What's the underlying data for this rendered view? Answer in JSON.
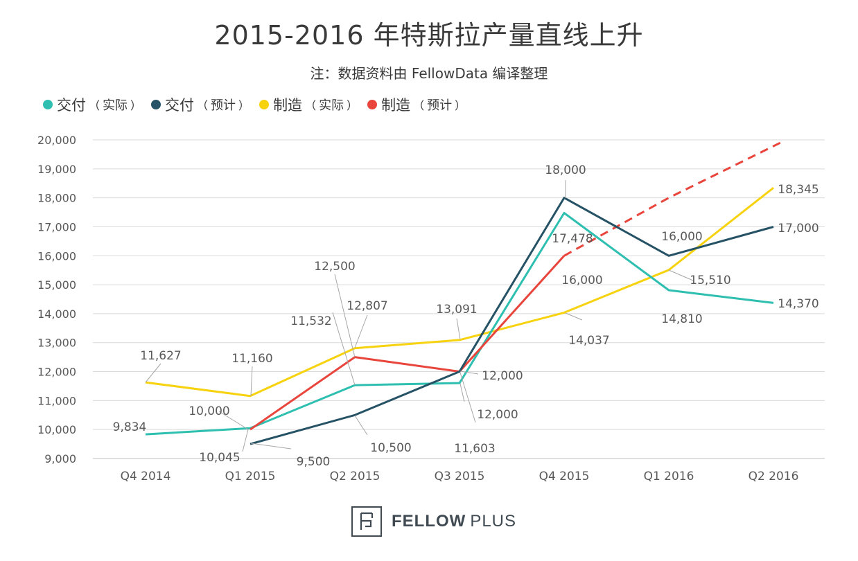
{
  "chart_data": {
    "type": "line",
    "title": "2015-2016 年特斯拉产量直线上升",
    "subtitle": "注：数据资料由 FellowData 编译整理",
    "categories": [
      "Q4 2014",
      "Q1 2015",
      "Q2 2015",
      "Q3 2015",
      "Q4 2015",
      "Q1 2016",
      "Q2 2016"
    ],
    "y_ticks": [
      "20,000",
      "19,000",
      "18,000",
      "17,000",
      "16,000",
      "15,000",
      "14,000",
      "13,000",
      "12,000",
      "11,000",
      "10,000",
      "9,000"
    ],
    "ylim": [
      9000,
      20000
    ],
    "grid": true,
    "legend_position": "top-left",
    "series": [
      {
        "name": "交付（实际）",
        "name_main": "交付",
        "name_sub": "实际",
        "color": "#2ebfb0",
        "dashed_after": null,
        "values": [
          9834,
          10045,
          11532,
          11603,
          17478,
          14810,
          14370
        ],
        "labels": [
          "9,834",
          "10,045",
          "11,532",
          "11,603",
          "17,478",
          "14,810",
          "14,370"
        ]
      },
      {
        "name": "交付（预计）",
        "name_main": "交付",
        "name_sub": "预计",
        "color": "#265265",
        "dashed_after": null,
        "values": [
          null,
          9500,
          10500,
          12000,
          18000,
          16000,
          17000
        ],
        "labels": [
          "",
          "9,500",
          "10,500",
          "12,000",
          "18,000",
          "16,000",
          "17,000"
        ]
      },
      {
        "name": "制造（实际）",
        "name_main": "制造",
        "name_sub": "实际",
        "color": "#f7d20f",
        "dashed_after": null,
        "values": [
          11627,
          11160,
          12807,
          13091,
          14037,
          15510,
          18345
        ],
        "labels": [
          "11,627",
          "11,160",
          "12,807",
          "13,091",
          "14,037",
          "15,510",
          "18,345"
        ]
      },
      {
        "name": "制造（预计）",
        "name_main": "制造",
        "name_sub": "预计",
        "color": "#e8453c",
        "dashed_after": 4,
        "values": [
          null,
          10000,
          12500,
          12000,
          16000,
          18000,
          20000
        ],
        "labels": [
          "",
          "10,000",
          "12,500",
          "12,000",
          "16,000",
          "",
          ""
        ]
      }
    ]
  },
  "logo": {
    "bold": "FELLOW",
    "light": "PLUS"
  }
}
